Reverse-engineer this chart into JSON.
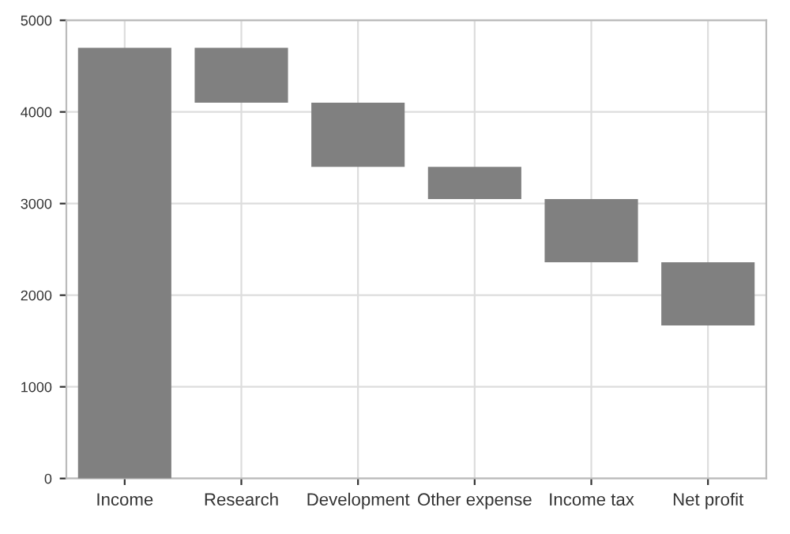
{
  "chart_data": {
    "type": "bar",
    "categories": [
      "Income",
      "Research",
      "Development",
      "Other expense",
      "Income tax",
      "Net profit"
    ],
    "values": [
      4700,
      600,
      700,
      350,
      690,
      690
    ],
    "base": [
      0,
      4100,
      3400,
      3050,
      2360,
      1670
    ],
    "color": "#808080",
    "ylim": [
      0,
      5000
    ],
    "yticks": [
      0,
      1000,
      2000,
      3000,
      4000,
      5000
    ],
    "grid": true
  }
}
